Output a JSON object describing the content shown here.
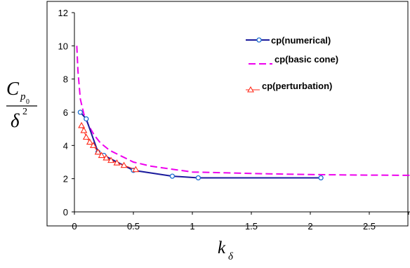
{
  "chart_data": {
    "type": "line",
    "title": "",
    "ylabel": {
      "main": "C",
      "subscript": "p",
      "sub_subscript": "0",
      "denominator": "δ",
      "power": "2"
    },
    "xlabel": {
      "main": "k",
      "subscript": "δ"
    },
    "xlim": [
      0,
      2.85
    ],
    "ylim": [
      0,
      12
    ],
    "x_ticks": [
      {
        "value": 0,
        "label": "0"
      },
      {
        "value": 0.5,
        "label": "0.5"
      },
      {
        "value": 1,
        "label": "1"
      },
      {
        "value": 1.5,
        "label": "1.5"
      },
      {
        "value": 2,
        "label": "2"
      },
      {
        "value": 2.5,
        "label": "2.5"
      }
    ],
    "y_ticks": [
      {
        "value": 0,
        "label": "0"
      },
      {
        "value": 2,
        "label": "2"
      },
      {
        "value": 4,
        "label": "4"
      },
      {
        "value": 6,
        "label": "6"
      },
      {
        "value": 8,
        "label": "8"
      },
      {
        "value": 10,
        "label": "10"
      },
      {
        "value": 12,
        "label": "12"
      }
    ],
    "grid": false,
    "legend_position": "top-right",
    "series": [
      {
        "name": "cp(numerical)",
        "color": "#1a1a9c",
        "style": "solid",
        "marker": "circle",
        "x": [
          0.05,
          0.1,
          0.2,
          0.25,
          0.5,
          0.83,
          1.05,
          2.09
        ],
        "y": [
          6.0,
          5.6,
          3.6,
          3.4,
          2.5,
          2.15,
          2.05,
          2.05
        ]
      },
      {
        "name": "cp(basic cone)",
        "color": "#ee00ee",
        "style": "dashed",
        "marker": "none",
        "x": [
          0.02,
          0.03,
          0.05,
          0.08,
          0.12,
          0.17,
          0.22,
          0.3,
          0.4,
          0.5,
          0.65,
          0.8,
          1.0,
          1.3,
          1.6,
          2.0,
          2.4,
          2.85
        ],
        "y": [
          10.0,
          8.5,
          6.8,
          5.9,
          5.2,
          4.6,
          4.15,
          3.7,
          3.35,
          3.0,
          2.75,
          2.6,
          2.4,
          2.35,
          2.3,
          2.25,
          2.22,
          2.2
        ]
      },
      {
        "name": "cp(perturbation)",
        "color": "#ff2a1a",
        "style": "solid",
        "marker": "triangle",
        "x": [
          0.06,
          0.08,
          0.1,
          0.13,
          0.16,
          0.2,
          0.23,
          0.27,
          0.31,
          0.36,
          0.42,
          0.52
        ],
        "y": [
          5.2,
          4.9,
          4.5,
          4.2,
          4.0,
          3.6,
          3.4,
          3.25,
          3.1,
          2.95,
          2.8,
          2.55
        ]
      }
    ]
  }
}
